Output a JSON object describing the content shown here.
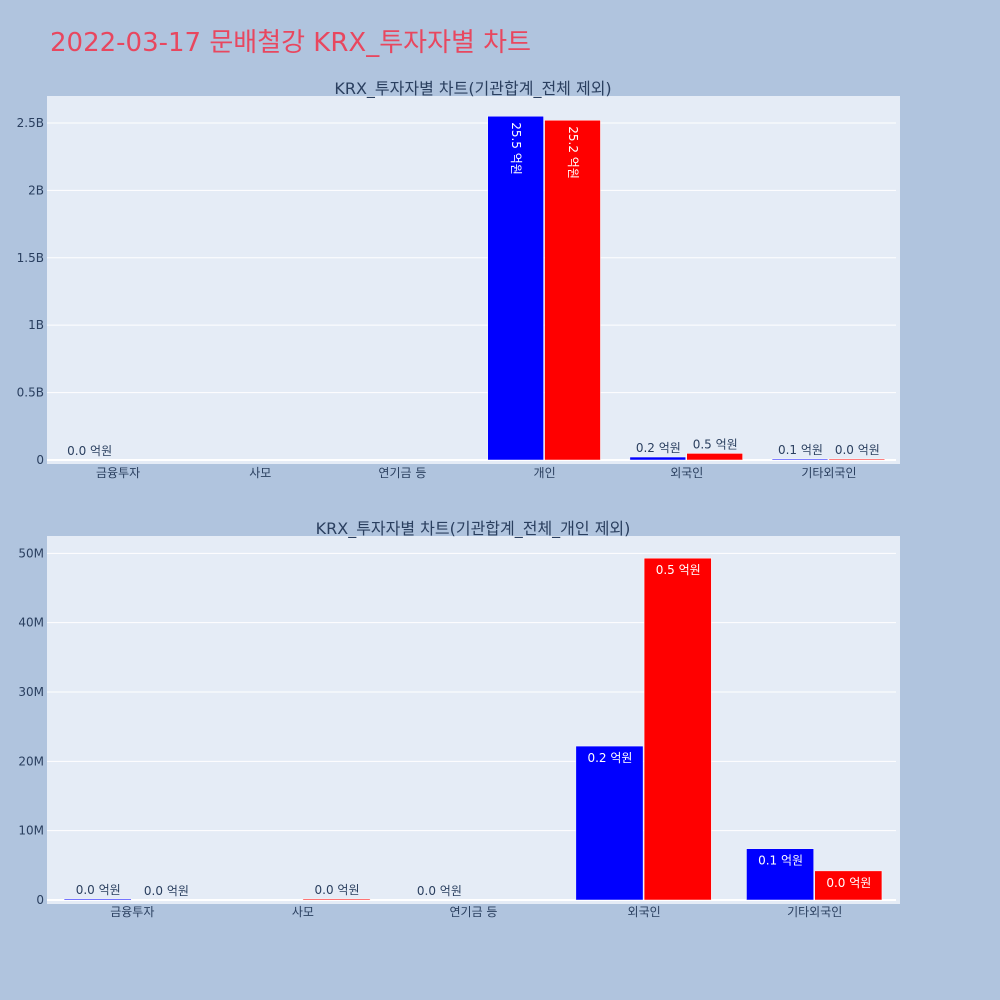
{
  "page": {
    "title": "2022-03-17 문배철강 KRX_투자자별 차트"
  },
  "colors": {
    "background": "#b0c4de",
    "plot_bg": "#e5ecf6",
    "title": "#e8475f",
    "series1": "#0000ff",
    "series2": "#ff0000"
  },
  "chart_data": [
    {
      "type": "bar",
      "title": "KRX_투자자별 차트(기관합계_전체 제외)",
      "categories": [
        "금융투자",
        "사모",
        "연기금 등",
        "개인",
        "외국인",
        "기타외국인"
      ],
      "y_ticks": [
        "0",
        "0.5B",
        "1B",
        "1.5B",
        "2B",
        "2.5B"
      ],
      "ylim": [
        0,
        2700000000
      ],
      "grid": true,
      "series": [
        {
          "values": [
            0,
            0,
            0,
            2550000000,
            22000000,
            7300000
          ],
          "labels": [
            "0.0 억원",
            "",
            "",
            "25.5 억원",
            "0.2 억원",
            "0.1 억원"
          ]
        },
        {
          "values": [
            0,
            0,
            0,
            2520000000,
            49000000,
            4100000
          ],
          "labels": [
            "",
            "",
            "",
            "25.2 억원",
            "0.5 억원",
            "0.0 억원"
          ]
        }
      ]
    },
    {
      "type": "bar",
      "title": "KRX_투자자별 차트(기관합계_전체_개인 제외)",
      "categories": [
        "금융투자",
        "사모",
        "연기금 등",
        "외국인",
        "기타외국인"
      ],
      "y_ticks": [
        "0",
        "10M",
        "20M",
        "30M",
        "40M",
        "50M"
      ],
      "ylim": [
        0,
        52500000
      ],
      "grid": true,
      "series": [
        {
          "values": [
            150000,
            0,
            0,
            22200000,
            7400000
          ],
          "labels": [
            "0.0 억원",
            "",
            "0.0 억원",
            "0.2 억원",
            "0.1 억원"
          ]
        },
        {
          "values": [
            0,
            150000,
            0,
            49300000,
            4200000
          ],
          "labels": [
            "0.0 억원",
            "0.0 억원",
            "",
            "0.5 억원",
            "0.0 억원"
          ]
        }
      ]
    }
  ]
}
